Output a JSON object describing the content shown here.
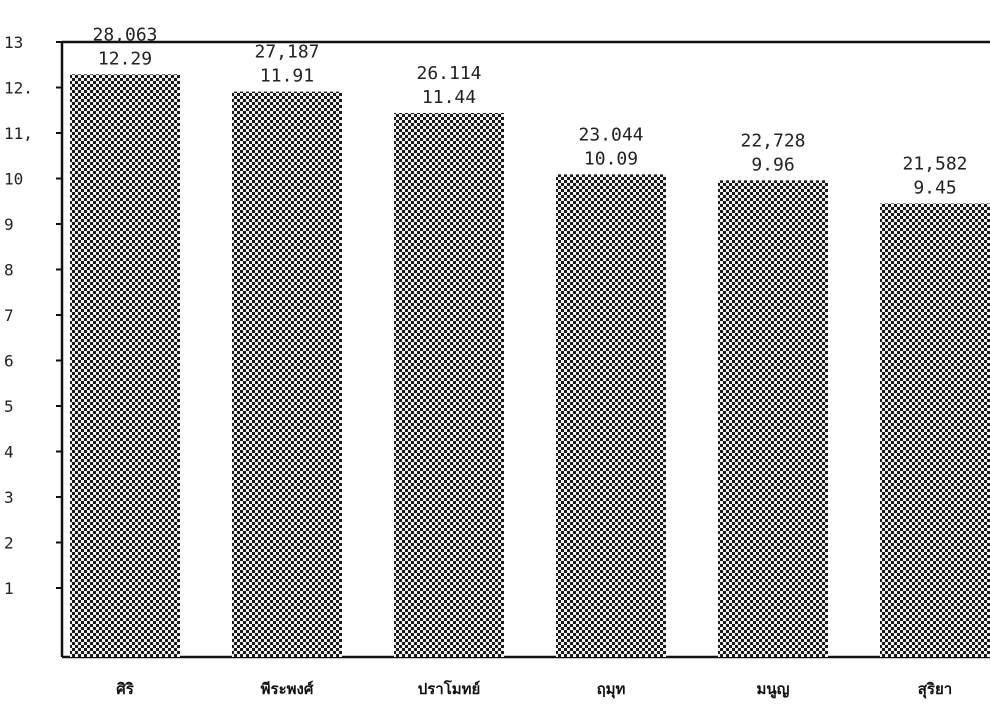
{
  "chart_data": {
    "type": "bar",
    "title": "",
    "xlabel": "",
    "ylabel": "",
    "ylim": [
      0,
      13
    ],
    "y_ticks": [
      1,
      2,
      3,
      4,
      5,
      6,
      7,
      8,
      9,
      10,
      11,
      12,
      13
    ],
    "y_tick_labels": [
      "1",
      "2",
      "3",
      "4",
      "5",
      "6",
      "7",
      "8",
      "9",
      "10",
      "11,",
      "12.",
      "13"
    ],
    "categories": [
      "ศิริ",
      "พีระพงศ์",
      "ปราโมทย์",
      "ฤมุท",
      "มนูญ",
      "สุริยา"
    ],
    "series": [
      {
        "values": [
          12.29,
          11.91,
          11.44,
          10.09,
          9.96,
          9.45
        ],
        "value_labels": [
          "12.29",
          "11.91",
          "11.44",
          "10.09",
          "9.96",
          "9.45"
        ],
        "count_labels": [
          "28,063",
          "27,187",
          "26.114",
          "23.044",
          "22,728",
          "21,582"
        ],
        "color": "#222222",
        "pattern": "checker"
      }
    ],
    "grid": false,
    "legend": "none"
  }
}
